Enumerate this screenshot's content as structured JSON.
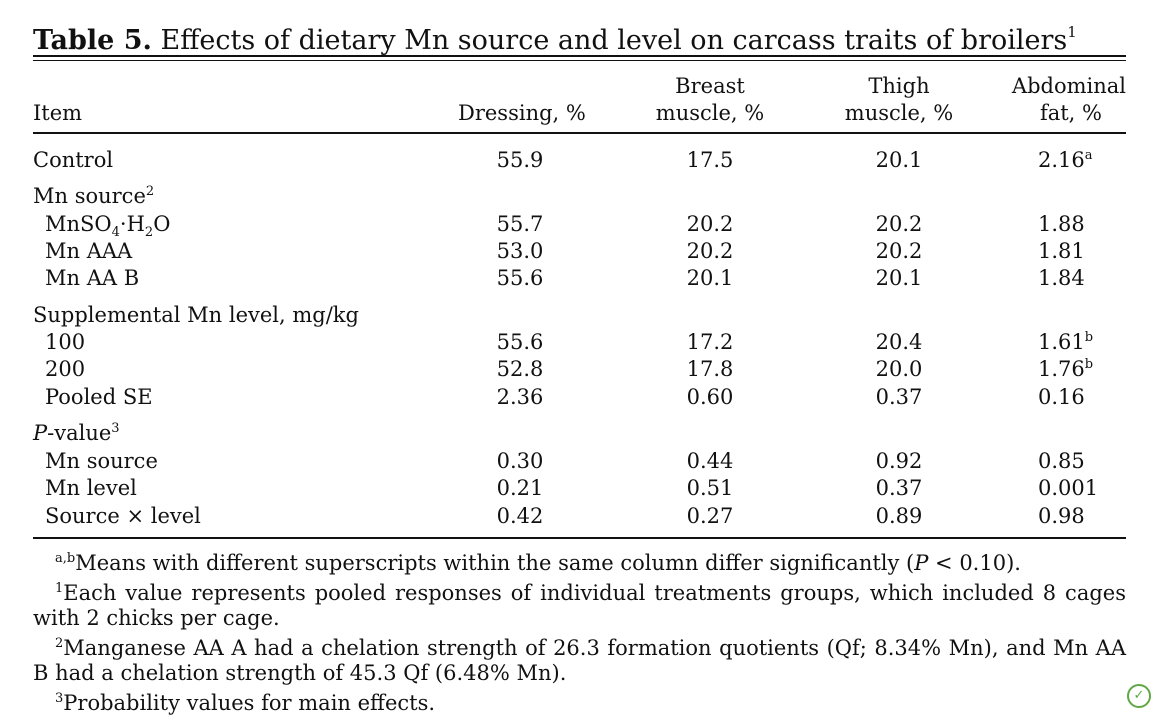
{
  "caption": {
    "label": "Table 5.",
    "text": " Effects of dietary Mn source and level on carcass traits of broilers",
    "sup": "1"
  },
  "headers": {
    "item": "Item",
    "dressing": "Dressing, %",
    "breast_l1": "Breast",
    "breast_l2": "muscle, %",
    "thigh_l1": "Thigh",
    "thigh_l2": "muscle, %",
    "fat_l1": "Abdominal",
    "fat_l2": "fat, %"
  },
  "control": {
    "label": "Control",
    "dressing": "55.9",
    "breast": "17.5",
    "thigh": "20.1",
    "fat": "2.16",
    "fat_sup": "a"
  },
  "mn_source": {
    "heading": "Mn source",
    "heading_sup": "2",
    "row1": {
      "label_a": "MnSO",
      "label_sub1": "4",
      "label_b": "·H",
      "label_sub2": "2",
      "label_c": "O",
      "dressing": "55.7",
      "breast": "20.2",
      "thigh": "20.2",
      "fat": "1.88"
    },
    "row2": {
      "label": "Mn AAA",
      "dressing": "53.0",
      "breast": "20.2",
      "thigh": "20.2",
      "fat": "1.81"
    },
    "row3": {
      "label": "Mn AA B",
      "dressing": "55.6",
      "breast": "20.1",
      "thigh": "20.1",
      "fat": "1.84"
    }
  },
  "mn_level": {
    "heading": "Supplemental Mn level, mg/kg",
    "row1": {
      "label": "100",
      "dressing": "55.6",
      "breast": "17.2",
      "thigh": "20.4",
      "fat": "1.61",
      "fat_sup": "b"
    },
    "row2": {
      "label": "200",
      "dressing": "52.8",
      "breast": "17.8",
      "thigh": "20.0",
      "fat": "1.76",
      "fat_sup": "b"
    },
    "row3": {
      "label": "Pooled SE",
      "dressing": "2.36",
      "breast": "0.60",
      "thigh": "0.37",
      "fat": "0.16"
    }
  },
  "pvalue": {
    "heading_italic": "P",
    "heading_rest": "-value",
    "heading_sup": "3",
    "row1": {
      "label": "Mn source",
      "dressing": "0.30",
      "breast": "0.44",
      "thigh": "0.92",
      "fat": "0.85"
    },
    "row2": {
      "label": "Mn level",
      "dressing": "0.21",
      "breast": "0.51",
      "thigh": "0.37",
      "fat": "0.001"
    },
    "row3": {
      "label": "Source × level",
      "dressing": "0.42",
      "breast": "0.27",
      "thigh": "0.89",
      "fat": "0.98"
    }
  },
  "footnotes": {
    "f_ab": {
      "mark": "a,b",
      "text_a": "Means with different superscripts within the same column differ significantly (",
      "p": "P",
      "text_b": " < 0.10)."
    },
    "f1": {
      "mark": "1",
      "text": "Each value represents pooled responses of individual treatments groups, which included 8 cages with 2 chicks per cage."
    },
    "f2": {
      "mark": "2",
      "text": "Manganese AA A had a chelation strength of 26.3 formation quotients (Qf; 8.34% Mn), and Mn AA B had a chelation strength of 45.3 Qf (6.48% Mn)."
    },
    "f3": {
      "mark": "3",
      "text": "Probability values for main effects."
    }
  },
  "badge_icon": "leaf-badge-icon"
}
